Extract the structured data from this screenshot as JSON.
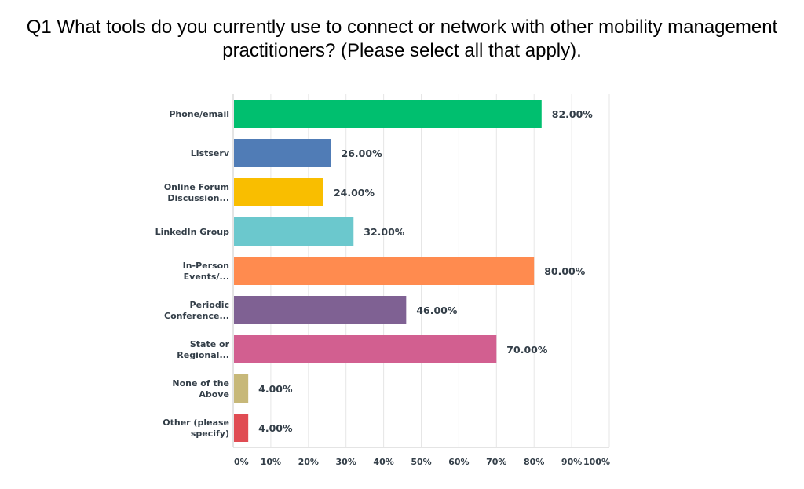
{
  "title_lines": [
    "Q1 What tools do you currently use to connect or network with other mobility management",
    "practitioners? (Please select all that apply)."
  ],
  "chart_data": {
    "type": "bar",
    "orientation": "horizontal",
    "title": "Q1 What tools do you currently use to connect or network with other mobility management practitioners? (Please select all that apply).",
    "categories": [
      [
        "Phone/email"
      ],
      [
        "Listserv"
      ],
      [
        "Online Forum",
        "Discussion..."
      ],
      [
        "LinkedIn Group"
      ],
      [
        "In-Person",
        "Events/..."
      ],
      [
        "Periodic",
        "Conference..."
      ],
      [
        "State or",
        "Regional..."
      ],
      [
        "None of the",
        "Above"
      ],
      [
        "Other (please",
        "specify)"
      ]
    ],
    "values": [
      82.0,
      26.0,
      24.0,
      32.0,
      80.0,
      46.0,
      70.0,
      4.0,
      4.0
    ],
    "value_labels": [
      "82.00%",
      "26.00%",
      "24.00%",
      "32.00%",
      "80.00%",
      "46.00%",
      "70.00%",
      "4.00%",
      "4.00%"
    ],
    "colors": [
      "#00bf6f",
      "#507cb6",
      "#f9be00",
      "#6bc8cd",
      "#ff8b4f",
      "#7f6193",
      "#d25f90",
      "#c7b879",
      "#e04c53"
    ],
    "xlim": [
      0,
      100
    ],
    "ticks": [
      "0%",
      "10%",
      "20%",
      "30%",
      "40%",
      "50%",
      "60%",
      "70%",
      "80%",
      "90%",
      "100%"
    ],
    "tick_values": [
      0,
      10,
      20,
      30,
      40,
      50,
      60,
      70,
      80,
      90,
      100
    ],
    "grid": true
  }
}
